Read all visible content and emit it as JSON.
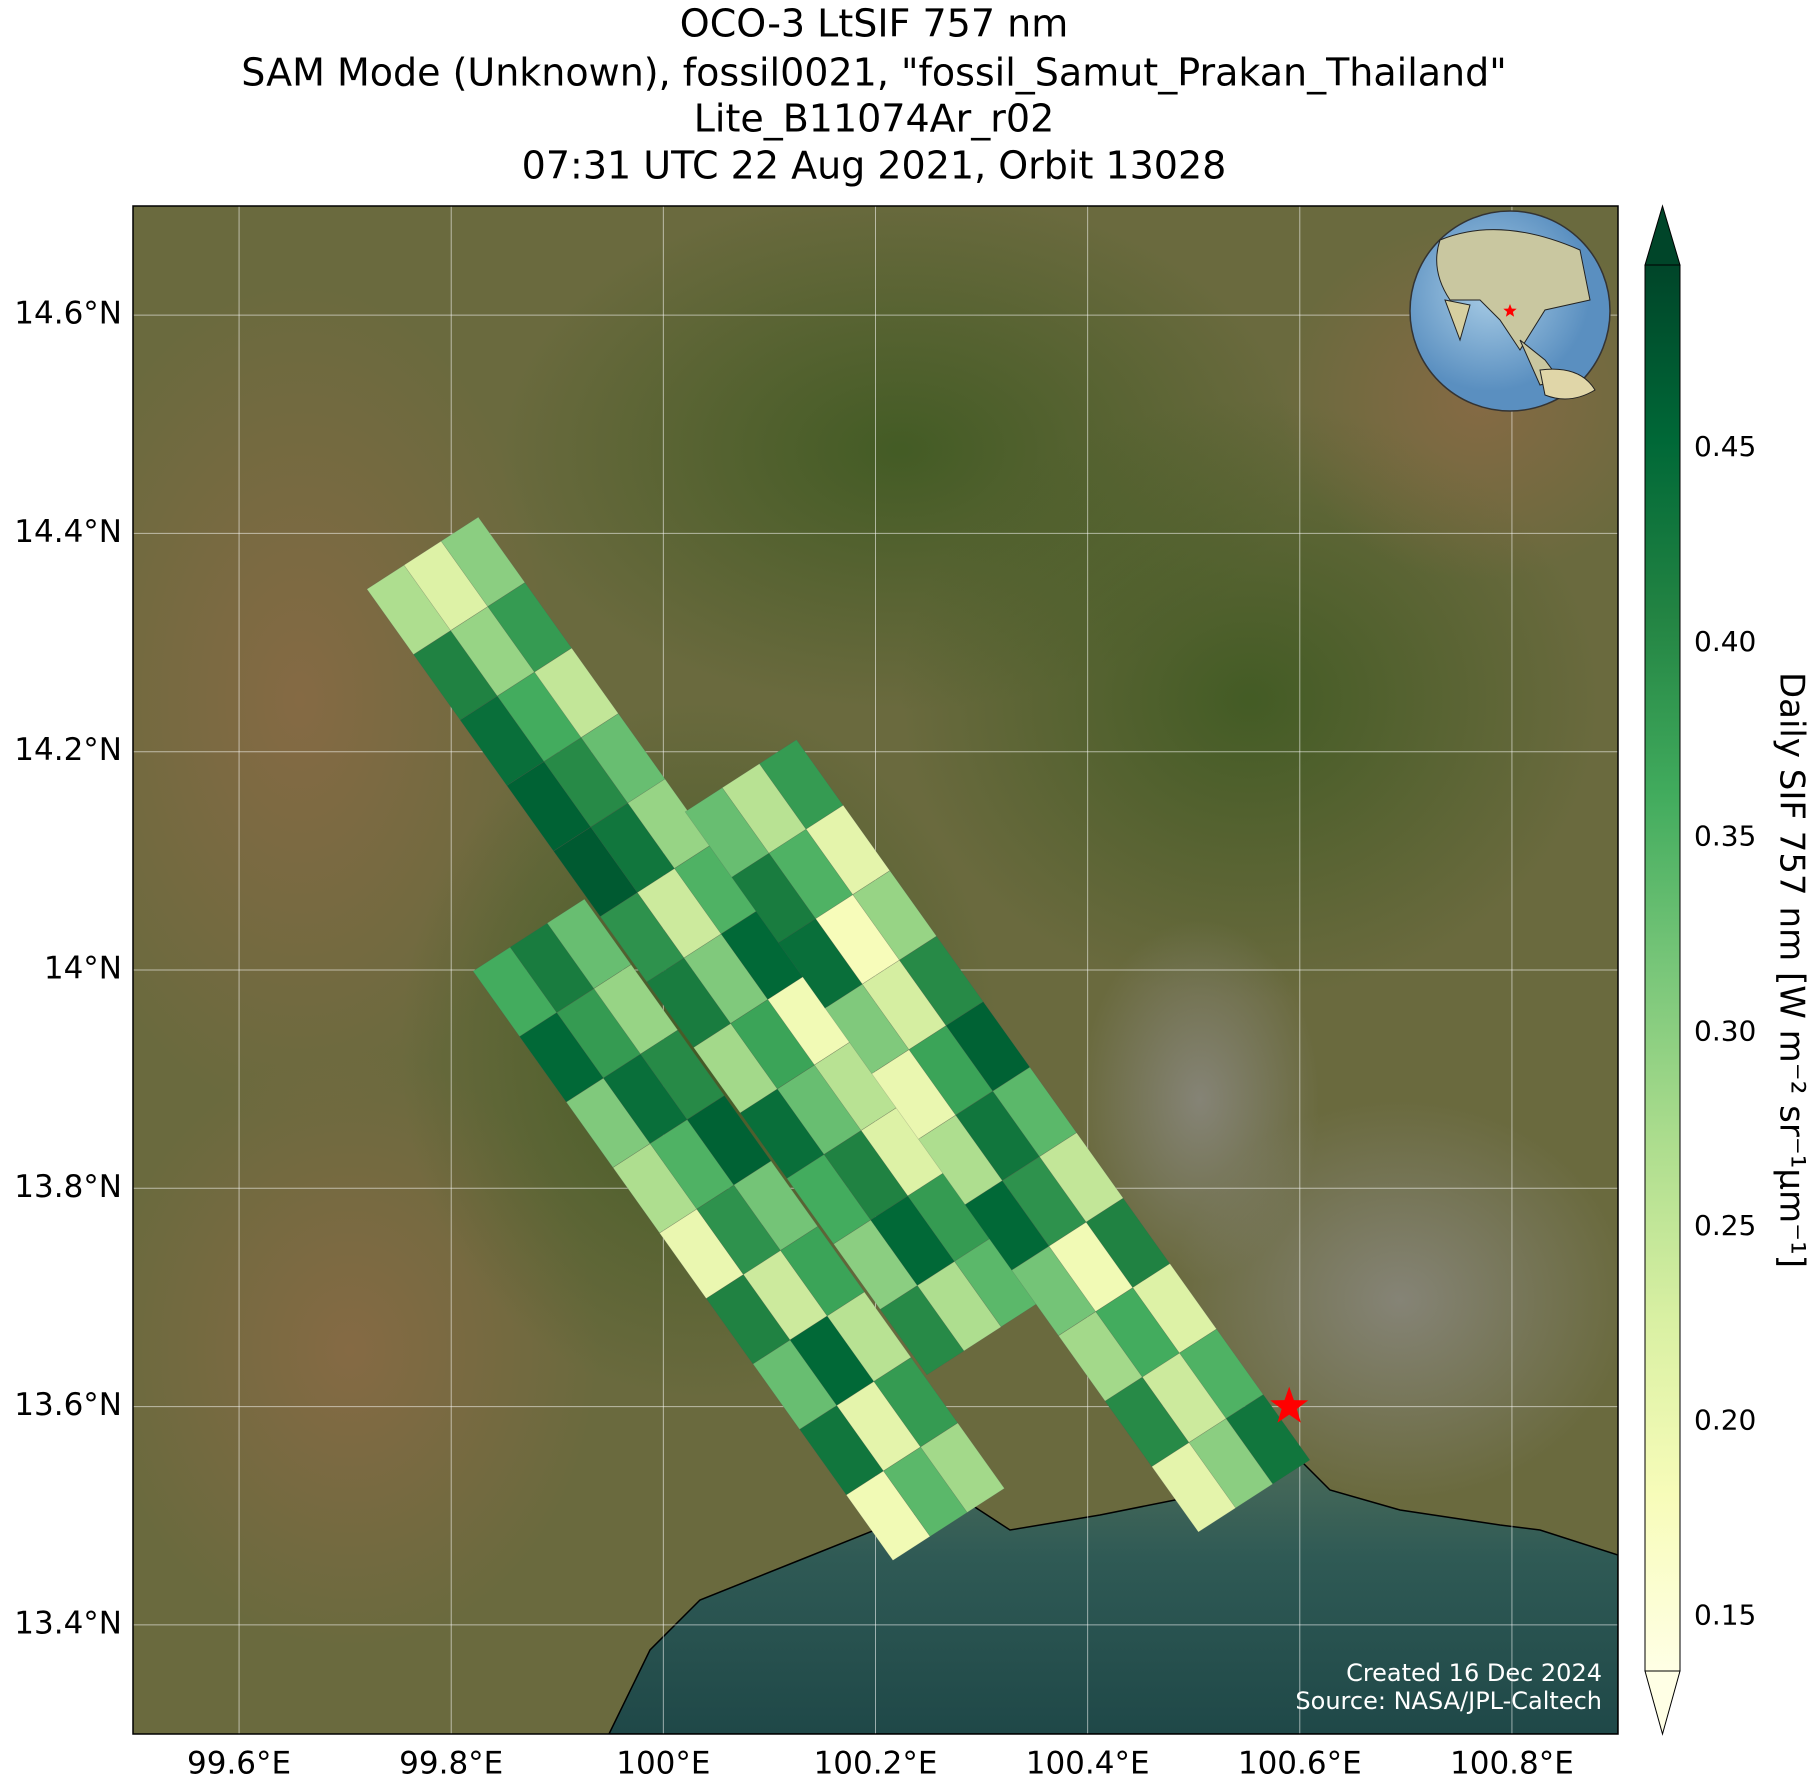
{
  "chart_data": {
    "type": "map",
    "title": [
      "OCO-3 LtSIF 757 nm",
      "SAM Mode (Unknown), fossil0021, \"fossil_Samut_Prakan_Thailand\"",
      "Lite_B11074Ar_r02",
      "07:31 UTC 22 Aug 2021, Orbit 13028"
    ],
    "xlim": [
      99.5,
      100.9
    ],
    "ylim": [
      13.3,
      14.7
    ],
    "xticks": [
      {
        "value": 99.6,
        "label": "99.6°E"
      },
      {
        "value": 99.8,
        "label": "99.8°E"
      },
      {
        "value": 100,
        "label": "100°E"
      },
      {
        "value": 100.2,
        "label": "100.2°E"
      },
      {
        "value": 100.4,
        "label": "100.4°E"
      },
      {
        "value": 100.6,
        "label": "100.6°E"
      },
      {
        "value": 100.8,
        "label": "100.8°E"
      }
    ],
    "yticks": [
      {
        "value": 13.4,
        "label": "13.4°N"
      },
      {
        "value": 13.6,
        "label": "13.6°N"
      },
      {
        "value": 13.8,
        "label": "13.8°N"
      },
      {
        "value": 14,
        "label": "14°N"
      },
      {
        "value": 14.2,
        "label": "14.2°N"
      },
      {
        "value": 14.4,
        "label": "14.4°N"
      },
      {
        "value": 14.6,
        "label": "14.6°N"
      }
    ],
    "grid": true,
    "colorbar_label": "Daily SIF 757 nm [W m⁻² sr⁻¹μm⁻¹]",
    "clim": [
      0.136,
      0.497
    ],
    "cticks": [
      0.15,
      {
        "value": 0.2,
        "label": "0.20"
      },
      0.25,
      {
        "value": 0.3,
        "label": "0.30"
      },
      0.35,
      {
        "value": 0.4,
        "label": "0.40"
      },
      0.45
    ],
    "lon": [
      99.76,
      99.795,
      99.83,
      99.804,
      99.839,
      99.874,
      99.848,
      99.883,
      99.918,
      99.892,
      99.927,
      99.962,
      99.936,
      99.971,
      100.006,
      99.98,
      100.015,
      100.05,
      100.024,
      100.059,
      100.094,
      100.068,
      100.103,
      100.138,
      100.112,
      100.147,
      100.182,
      100.156,
      100.191,
      100.226,
      100.2,
      100.235,
      100.27,
      100.244,
      100.279,
      100.314,
      100.13,
      100.095,
      100.06,
      100.174,
      100.139,
      100.104,
      100.218,
      100.183,
      100.148,
      100.262,
      100.227,
      100.192,
      100.306,
      100.271,
      100.236,
      100.35,
      100.315,
      100.28,
      100.394,
      100.359,
      100.324,
      100.438,
      100.403,
      100.368,
      100.482,
      100.447,
      100.412,
      100.526,
      100.491,
      100.456,
      100.57,
      100.535,
      100.5,
      99.86,
      99.895,
      99.93,
      99.904,
      99.939,
      99.974,
      99.948,
      99.983,
      100.018,
      99.992,
      100.027,
      100.062,
      100.036,
      100.071,
      100.106,
      100.08,
      100.115,
      100.15,
      100.124,
      100.159,
      100.194,
      100.168,
      100.203,
      100.238,
      100.212,
      100.247,
      100.282
    ],
    "lat": [
      14.33,
      14.352,
      14.374,
      14.27,
      14.292,
      14.314,
      14.21,
      14.232,
      14.254,
      14.15,
      14.172,
      14.194,
      14.09,
      14.112,
      14.134,
      14.03,
      14.052,
      14.074,
      13.97,
      13.992,
      14.014,
      13.91,
      13.932,
      13.954,
      13.85,
      13.872,
      13.894,
      13.79,
      13.812,
      13.834,
      13.73,
      13.752,
      13.774,
      13.67,
      13.692,
      13.714,
      14.17,
      14.148,
      14.126,
      14.11,
      14.088,
      14.066,
      14.05,
      14.028,
      14.006,
      13.99,
      13.968,
      13.946,
      13.93,
      13.908,
      13.886,
      13.87,
      13.848,
      13.826,
      13.81,
      13.788,
      13.766,
      13.75,
      13.728,
      13.706,
      13.69,
      13.668,
      13.646,
      13.63,
      13.608,
      13.586,
      13.57,
      13.548,
      13.526,
      13.98,
      14.002,
      14.024,
      13.92,
      13.942,
      13.964,
      13.86,
      13.882,
      13.904,
      13.8,
      13.822,
      13.844,
      13.74,
      13.762,
      13.784,
      13.68,
      13.702,
      13.724,
      13.62,
      13.642,
      13.664,
      13.56,
      13.582,
      13.604,
      13.5,
      13.522,
      13.544
    ],
    "values": [
      0.27,
      0.22,
      0.3,
      0.41,
      0.29,
      0.38,
      0.44,
      0.36,
      0.25,
      0.46,
      0.4,
      0.33,
      0.47,
      0.43,
      0.29,
      0.39,
      0.24,
      0.35,
      0.42,
      0.31,
      0.45,
      0.28,
      0.37,
      0.19,
      0.44,
      0.33,
      0.26,
      0.36,
      0.41,
      0.22,
      0.3,
      0.45,
      0.38,
      0.4,
      0.27,
      0.34,
      0.38,
      0.26,
      0.33,
      0.21,
      0.35,
      0.42,
      0.29,
      0.18,
      0.44,
      0.4,
      0.23,
      0.31,
      0.46,
      0.37,
      0.2,
      0.34,
      0.43,
      0.27,
      0.25,
      0.39,
      0.45,
      0.41,
      0.19,
      0.32,
      0.22,
      0.36,
      0.28,
      0.35,
      0.24,
      0.4,
      0.43,
      0.3,
      0.21,
      0.36,
      0.42,
      0.33,
      0.45,
      0.38,
      0.29,
      0.31,
      0.44,
      0.4,
      0.27,
      0.35,
      0.46,
      0.2,
      0.39,
      0.32,
      0.41,
      0.24,
      0.37,
      0.33,
      0.45,
      0.26,
      0.43,
      0.21,
      0.38,
      0.19,
      0.34,
      0.28
    ],
    "site": {
      "lon": 100.59,
      "lat": 13.6,
      "color": "#ff0000"
    },
    "annotations": [
      "Created 16 Dec 2024",
      "Source: NASA/JPL-Caltech"
    ]
  }
}
